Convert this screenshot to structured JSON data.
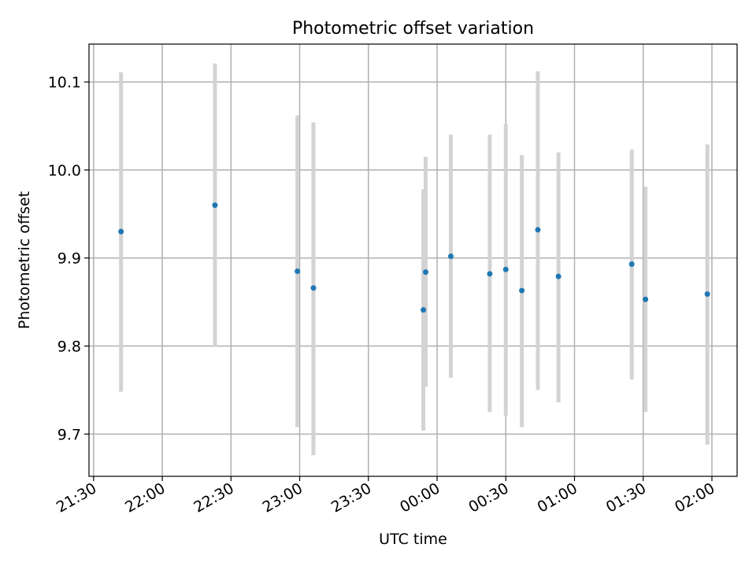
{
  "chart_data": {
    "type": "scatter",
    "title": "Photometric offset variation",
    "xlabel": "UTC time",
    "ylabel": "Photometric offset",
    "xlim": [
      "21:28",
      "02:11"
    ],
    "ylim": [
      9.652,
      10.143
    ],
    "x_ticks": [
      "21:30",
      "22:00",
      "22:30",
      "23:00",
      "23:30",
      "00:00",
      "00:30",
      "01:00",
      "01:30",
      "02:00"
    ],
    "y_ticks": [
      "9.7",
      "9.8",
      "9.9",
      "10.0",
      "10.1"
    ],
    "grid": true,
    "marker_color": "#1f77b4",
    "errorbar_color": "#d3d3d3",
    "points": [
      {
        "x": "21:42",
        "y": 9.93,
        "ylow": 9.748,
        "yhigh": 10.111
      },
      {
        "x": "22:23",
        "y": 9.96,
        "ylow": 9.799,
        "yhigh": 10.121
      },
      {
        "x": "22:59",
        "y": 9.885,
        "ylow": 9.708,
        "yhigh": 10.062
      },
      {
        "x": "23:06",
        "y": 9.866,
        "ylow": 9.676,
        "yhigh": 10.054
      },
      {
        "x": "23:54",
        "y": 9.841,
        "ylow": 9.704,
        "yhigh": 9.978
      },
      {
        "x": "23:55",
        "y": 9.884,
        "ylow": 9.754,
        "yhigh": 10.015
      },
      {
        "x": "00:06",
        "y": 9.902,
        "ylow": 9.764,
        "yhigh": 10.04
      },
      {
        "x": "00:23",
        "y": 9.882,
        "ylow": 9.725,
        "yhigh": 10.04
      },
      {
        "x": "00:30",
        "y": 9.887,
        "ylow": 9.721,
        "yhigh": 10.052
      },
      {
        "x": "00:37",
        "y": 9.863,
        "ylow": 9.708,
        "yhigh": 10.017
      },
      {
        "x": "00:44",
        "y": 9.932,
        "ylow": 9.75,
        "yhigh": 10.112
      },
      {
        "x": "00:53",
        "y": 9.879,
        "ylow": 9.736,
        "yhigh": 10.02
      },
      {
        "x": "01:25",
        "y": 9.893,
        "ylow": 9.762,
        "yhigh": 10.023
      },
      {
        "x": "01:31",
        "y": 9.853,
        "ylow": 9.725,
        "yhigh": 9.981
      },
      {
        "x": "01:58",
        "y": 9.859,
        "ylow": 9.688,
        "yhigh": 10.029
      }
    ]
  }
}
